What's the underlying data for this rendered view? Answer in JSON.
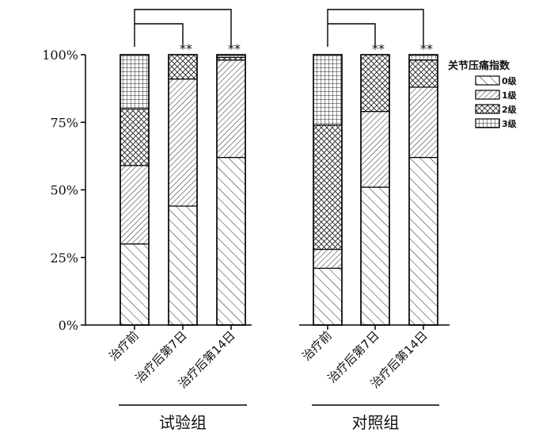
{
  "chart_data": {
    "type": "bar",
    "stacked": true,
    "y_unit": "%",
    "ylim": [
      0,
      100
    ],
    "yticks": [
      0,
      25,
      50,
      75,
      100
    ],
    "ytick_labels": [
      "0%",
      "25%",
      "50%",
      "75%",
      "100%"
    ],
    "groups": [
      {
        "label": "试验组",
        "categories": [
          "治疗前",
          "治疗后第7日",
          "治疗后第14日"
        ],
        "significance": [
          "",
          "**",
          "**"
        ]
      },
      {
        "label": "对照组",
        "categories": [
          "治疗前",
          "治疗后第7日",
          "治疗后第14日"
        ],
        "significance": [
          "",
          "**",
          "**"
        ]
      }
    ],
    "legend": {
      "title": "关节压痛指数",
      "position": "top-right"
    },
    "series": [
      {
        "name": "0级",
        "pattern": "diag-right",
        "values": [
          30,
          44,
          62,
          21,
          51,
          62
        ]
      },
      {
        "name": "1级",
        "pattern": "diag-left",
        "values": [
          29,
          47,
          36,
          7,
          28,
          26
        ]
      },
      {
        "name": "2级",
        "pattern": "crosshatch",
        "values": [
          21,
          9,
          1,
          46,
          21,
          10
        ]
      },
      {
        "name": "3级",
        "pattern": "grid",
        "values": [
          20,
          0,
          1,
          26,
          0,
          2
        ]
      }
    ],
    "colors": {
      "fill": "#ffffff",
      "stroke": "#000000"
    }
  }
}
